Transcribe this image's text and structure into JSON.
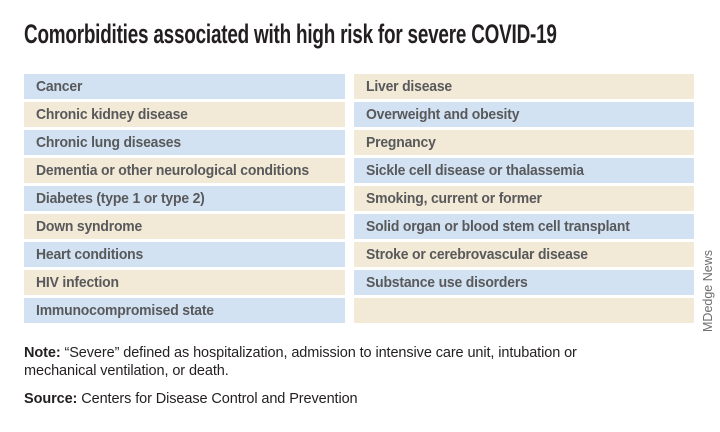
{
  "chart_data": {
    "type": "table",
    "title": "Comorbidities associated with high risk for severe COVID-19",
    "columns": {
      "left": [
        "Cancer",
        "Chronic kidney disease",
        "Chronic lung diseases",
        "Dementia or other neurological conditions",
        "Diabetes (type 1 or type 2)",
        "Down syndrome",
        "Heart conditions",
        "HIV infection",
        "Immunocompromised state"
      ],
      "right": [
        "Liver disease",
        "Overweight and obesity",
        "Pregnancy",
        "Sickle cell disease or thalassemia",
        "Smoking, current or former",
        "Solid organ or blood stem cell transplant",
        "Stroke or cerebrovascular disease",
        "Substance use disorders",
        ""
      ]
    },
    "note_label": "Note:",
    "note_text": "“Severe” defined as hospitalization, admission to intensive care unit, intubation or mechanical ventilation, or death.",
    "source_label": "Source:",
    "source_text": "Centers for Disease Control and Prevention",
    "credit": "MDedge News"
  },
  "colors": {
    "row_blue": "#d3e2f2",
    "row_tan": "#f2e9d7",
    "row_text": "#58595b",
    "title_text": "#231f20",
    "credit_text": "#6d6e71",
    "background": "#ffffff"
  }
}
